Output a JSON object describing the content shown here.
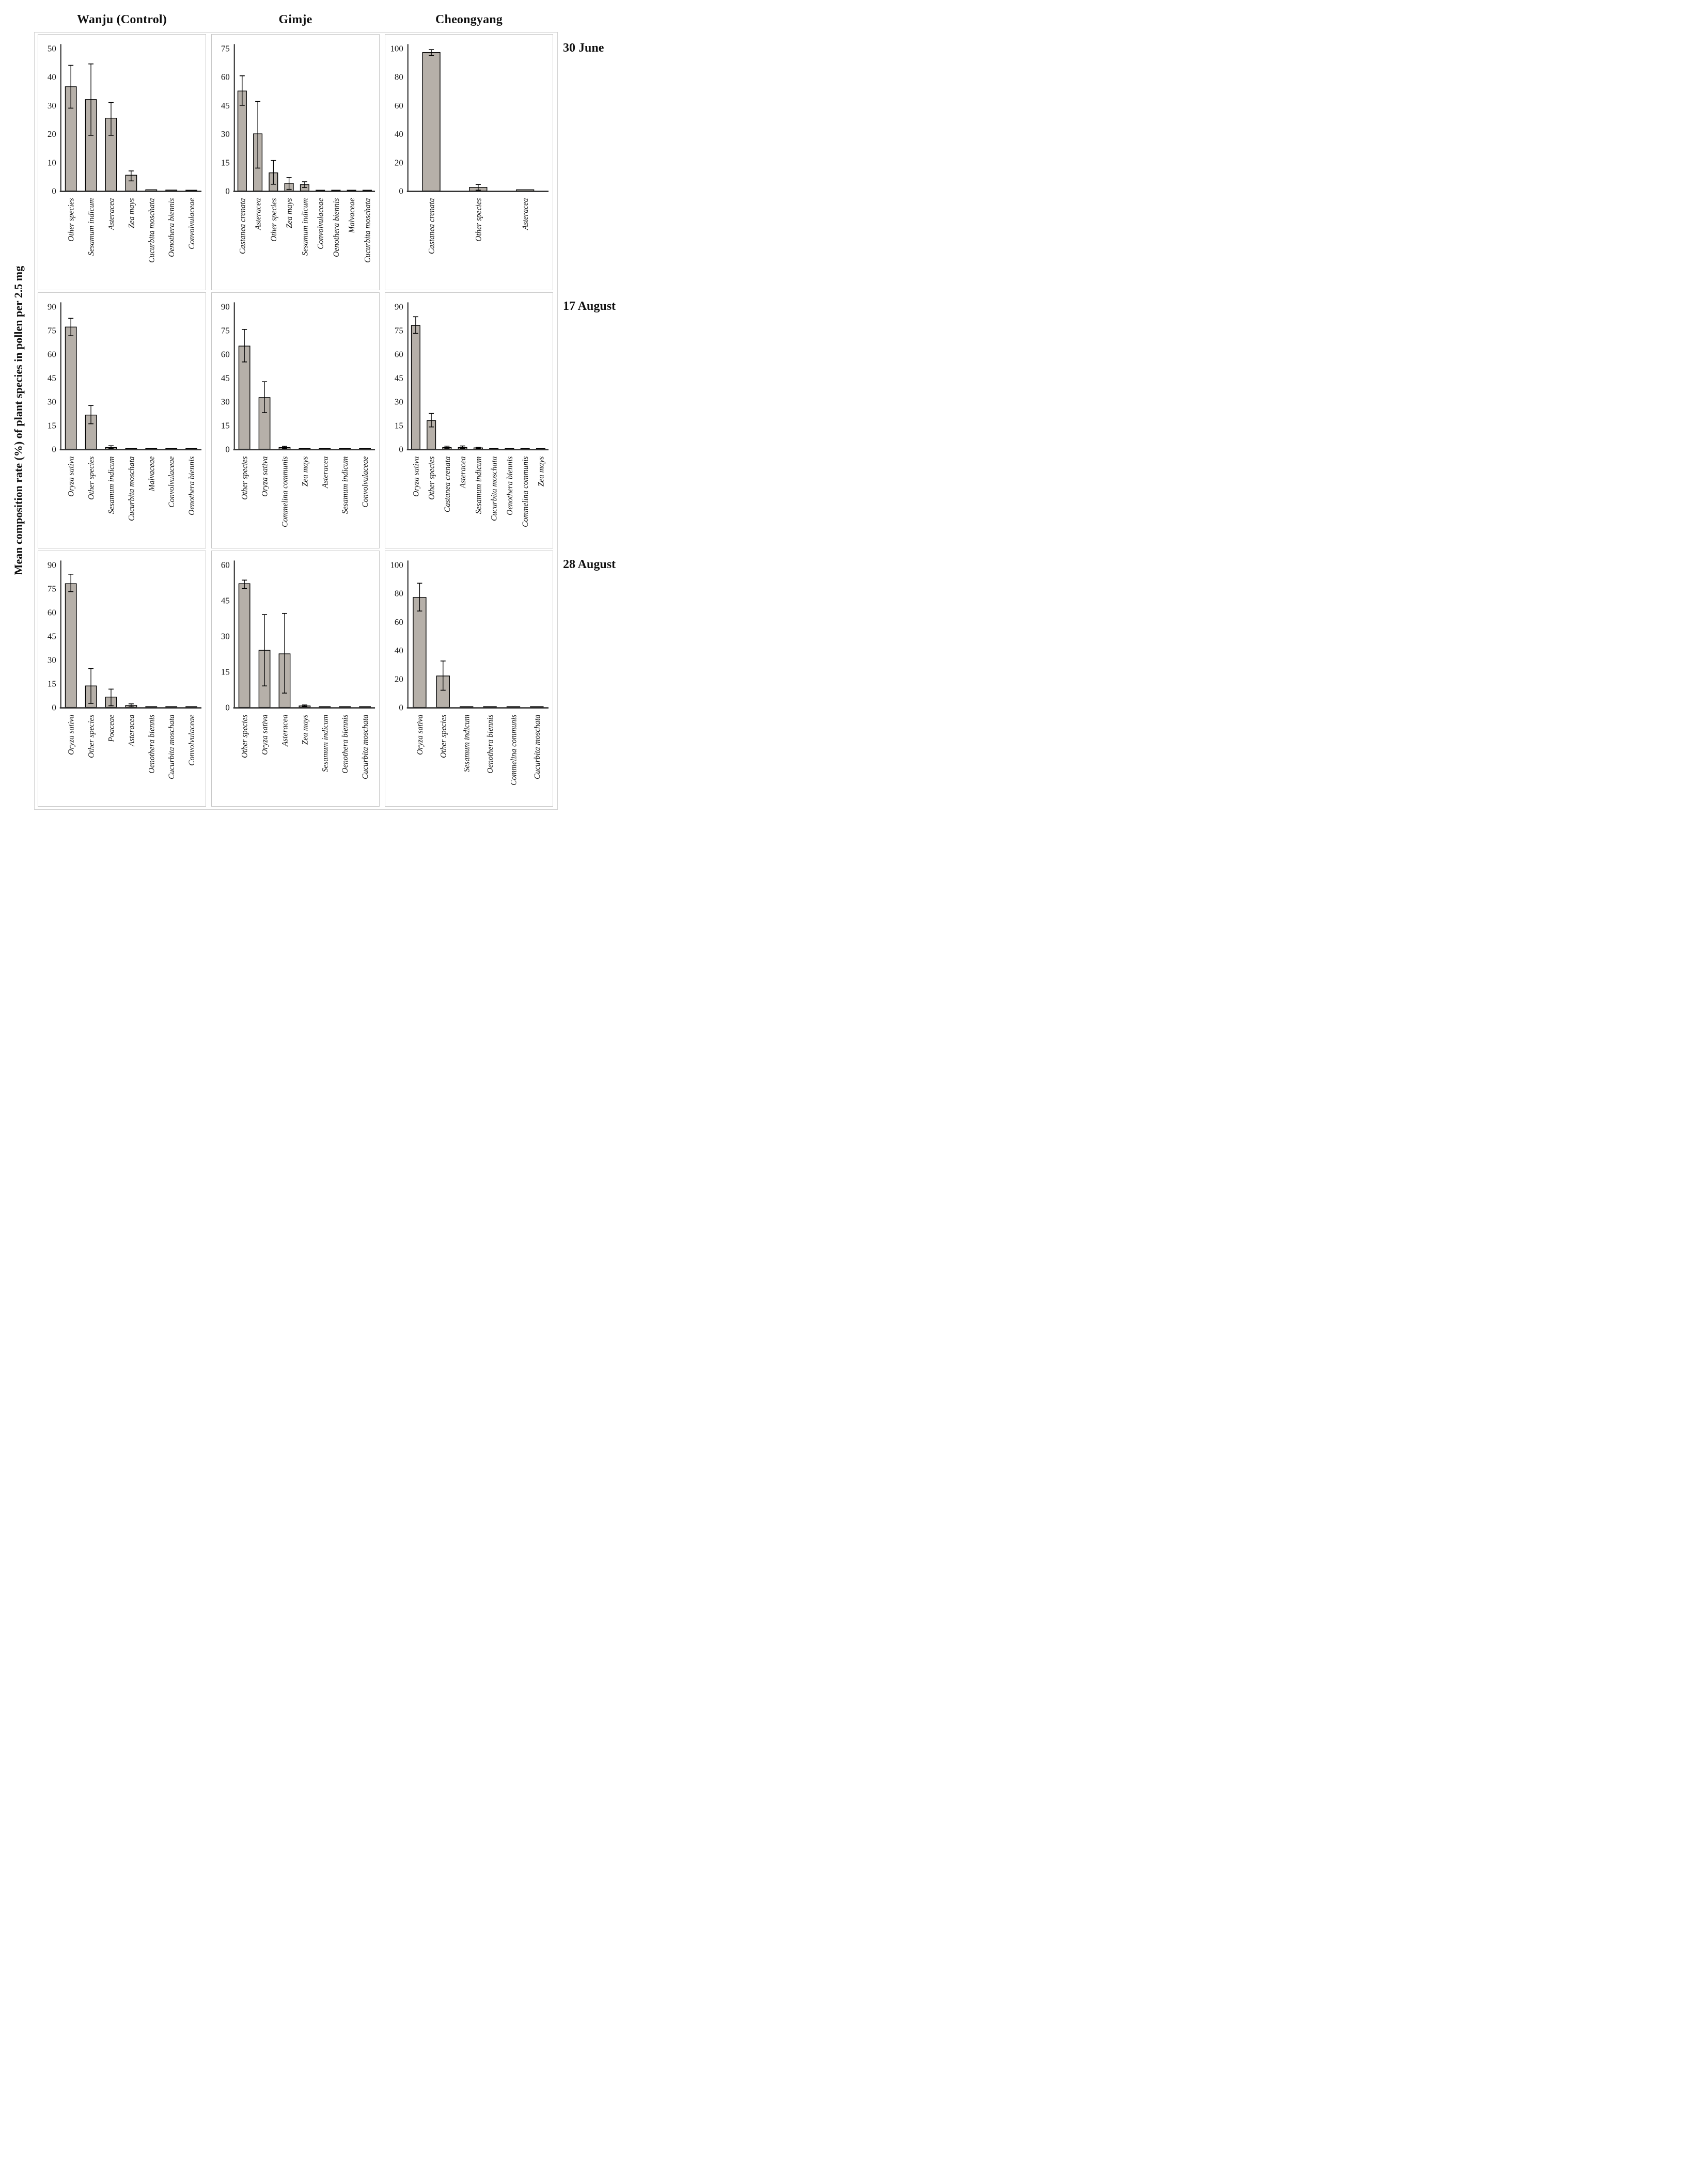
{
  "figure": {
    "y_axis_label": "Mean composition rate (%) of plant species in pollen per 2.5 mg",
    "column_headers": [
      "Wanju (Control)",
      "Gimje",
      "Cheongyang"
    ],
    "row_labels": [
      "30 June",
      "17 August",
      "28 August"
    ]
  },
  "style": {
    "bar_fill": "#b6b0a9",
    "bar_stroke": "#000000",
    "axis_color": "#363636",
    "panel_border": "#c9c9c9",
    "text_color": "#111111"
  },
  "chart_data": [
    {
      "type": "bar",
      "site": "Wanju (Control)",
      "date": "30 June",
      "row": 0,
      "col": 0,
      "ylim": [
        0,
        50
      ],
      "yticks": [
        0,
        10,
        20,
        30,
        40,
        50
      ],
      "categories": [
        "Other species",
        "Sesamum indicum",
        "Asteracea",
        "Zea mays",
        "Cucurbita moschata",
        "Oenothera biennis",
        "Convolvulaceae"
      ],
      "values": [
        36.5,
        32,
        25.5,
        5.5,
        0.4,
        0.3,
        0.25
      ],
      "error_low": [
        29,
        19.5,
        19.5,
        3.5,
        0.4,
        0.3,
        0.25
      ],
      "error_high": [
        44,
        44.5,
        31,
        7,
        0.4,
        0.3,
        0.25
      ]
    },
    {
      "type": "bar",
      "site": "Gimje",
      "date": "30 June",
      "row": 0,
      "col": 1,
      "ylim": [
        0,
        75
      ],
      "yticks": [
        0,
        15,
        30,
        45,
        60,
        75
      ],
      "categories": [
        "Castanea crenata",
        "Asteracea",
        "Other species",
        "Zea mays",
        "Sesamum indicum",
        "Convolvulaceae",
        "Oenothera biennis",
        "Malvaceae",
        "Cucurbita moschata"
      ],
      "values": [
        52.5,
        30,
        9.5,
        4,
        3.3,
        0.25,
        0.25,
        0.25,
        0.25
      ],
      "error_low": [
        45,
        12,
        3.5,
        0.8,
        1.8,
        0.25,
        0.25,
        0.25,
        0.25
      ],
      "error_high": [
        60.5,
        47,
        16,
        7,
        4.8,
        0.25,
        0.25,
        0.25,
        0.25
      ]
    },
    {
      "type": "bar",
      "site": "Cheongyang",
      "date": "30 June",
      "row": 0,
      "col": 2,
      "ylim": [
        0,
        100
      ],
      "yticks": [
        0,
        20,
        40,
        60,
        80,
        100
      ],
      "categories": [
        "Castanea crenata",
        "Other species",
        "Asteracea"
      ],
      "values": [
        97,
        2.5,
        0.8
      ],
      "error_low": [
        95,
        0.5,
        0.8
      ],
      "error_high": [
        99,
        4.5,
        0.8
      ]
    },
    {
      "type": "bar",
      "site": "Wanju (Control)",
      "date": "17 August",
      "row": 1,
      "col": 0,
      "ylim": [
        0,
        90
      ],
      "yticks": [
        0,
        15,
        30,
        45,
        60,
        75,
        90
      ],
      "categories": [
        "Oryza sativa",
        "Other species",
        "Sesamum indicum",
        "Cucurbita moschata",
        "Malvaceae",
        "Convolvulaceae",
        "Oenothera biennis"
      ],
      "values": [
        77,
        21.5,
        1,
        0.25,
        0.25,
        0.25,
        0.25
      ],
      "error_low": [
        71.5,
        16,
        0.3,
        0.25,
        0.25,
        0.25,
        0.25
      ],
      "error_high": [
        82.5,
        27.5,
        2.1,
        0.25,
        0.25,
        0.25,
        0.25
      ]
    },
    {
      "type": "bar",
      "site": "Gimje",
      "date": "17 August",
      "row": 1,
      "col": 1,
      "ylim": [
        0,
        90
      ],
      "yticks": [
        0,
        15,
        30,
        45,
        60,
        75,
        90
      ],
      "categories": [
        "Other species",
        "Oryza sativa",
        "Commelina communis",
        "Zea mays",
        "Asteracea",
        "Sesamum indicum",
        "Convolvulaceae"
      ],
      "values": [
        65,
        32.5,
        1,
        0.35,
        0.35,
        0.3,
        0.25
      ],
      "error_low": [
        55,
        23,
        0.4,
        0.35,
        0.35,
        0.3,
        0.25
      ],
      "error_high": [
        75.5,
        42.5,
        1.8,
        0.35,
        0.35,
        0.3,
        0.25
      ]
    },
    {
      "type": "bar",
      "site": "Cheongyang",
      "date": "17 August",
      "row": 1,
      "col": 2,
      "ylim": [
        0,
        90
      ],
      "yticks": [
        0,
        15,
        30,
        45,
        60,
        75,
        90
      ],
      "categories": [
        "Oryza sativa",
        "Other species",
        "Castanea crenata",
        "Asteracea",
        "Sesamum indicum",
        "Cucurbita moschata",
        "Oenothera biennis",
        "Commelina communis",
        "Zea mays"
      ],
      "values": [
        78,
        18,
        1,
        1,
        0.8,
        0.25,
        0.25,
        0.25,
        0.25
      ],
      "error_low": [
        73,
        14,
        0.5,
        0.3,
        0.4,
        0.25,
        0.25,
        0.25,
        0.25
      ],
      "error_high": [
        83.5,
        22.5,
        1.9,
        2,
        1.2,
        0.25,
        0.25,
        0.25,
        0.25
      ]
    },
    {
      "type": "bar",
      "site": "Wanju (Control)",
      "date": "28 August",
      "row": 2,
      "col": 0,
      "ylim": [
        0,
        90
      ],
      "yticks": [
        0,
        15,
        30,
        45,
        60,
        75,
        90
      ],
      "categories": [
        "Oryza sativa",
        "Other species",
        "Poaceae",
        "Asteracea",
        "Oenothera biennis",
        "Cucurbita moschata",
        "Convolvulaceae"
      ],
      "values": [
        78,
        13.5,
        6.5,
        1.2,
        0.25,
        0.25,
        0.25
      ],
      "error_low": [
        73,
        2.5,
        1,
        0.3,
        0.25,
        0.25,
        0.25
      ],
      "error_high": [
        84,
        24.5,
        11.5,
        2.2,
        0.25,
        0.25,
        0.25
      ]
    },
    {
      "type": "bar",
      "site": "Gimje",
      "date": "28 August",
      "row": 2,
      "col": 1,
      "ylim": [
        0,
        60
      ],
      "yticks": [
        0,
        15,
        30,
        45,
        60
      ],
      "categories": [
        "Other species",
        "Oryza sativa",
        "Asteracea",
        "Zea mays",
        "Sesamum indicum",
        "Oenothera biennis",
        "Cucurbita moschata"
      ],
      "values": [
        52,
        24,
        22.5,
        0.6,
        0.3,
        0.25,
        0.25
      ],
      "error_low": [
        50,
        9,
        6,
        0.3,
        0.3,
        0.25,
        0.25
      ],
      "error_high": [
        53.5,
        39,
        39.5,
        1,
        0.3,
        0.25,
        0.25
      ]
    },
    {
      "type": "bar",
      "site": "Cheongyang",
      "date": "28 August",
      "row": 2,
      "col": 2,
      "ylim": [
        0,
        100
      ],
      "yticks": [
        0,
        20,
        40,
        60,
        80,
        100
      ],
      "categories": [
        "Oryza sativa",
        "Other species",
        "Sesamum indicum",
        "Oenothera biennis",
        "Commelina communis",
        "Cucurbita moschata"
      ],
      "values": [
        77,
        22,
        0.5,
        0.3,
        0.3,
        0.3
      ],
      "error_low": [
        67.5,
        12,
        0.5,
        0.3,
        0.3,
        0.3
      ],
      "error_high": [
        87,
        32.5,
        0.5,
        0.3,
        0.3,
        0.3
      ]
    }
  ]
}
